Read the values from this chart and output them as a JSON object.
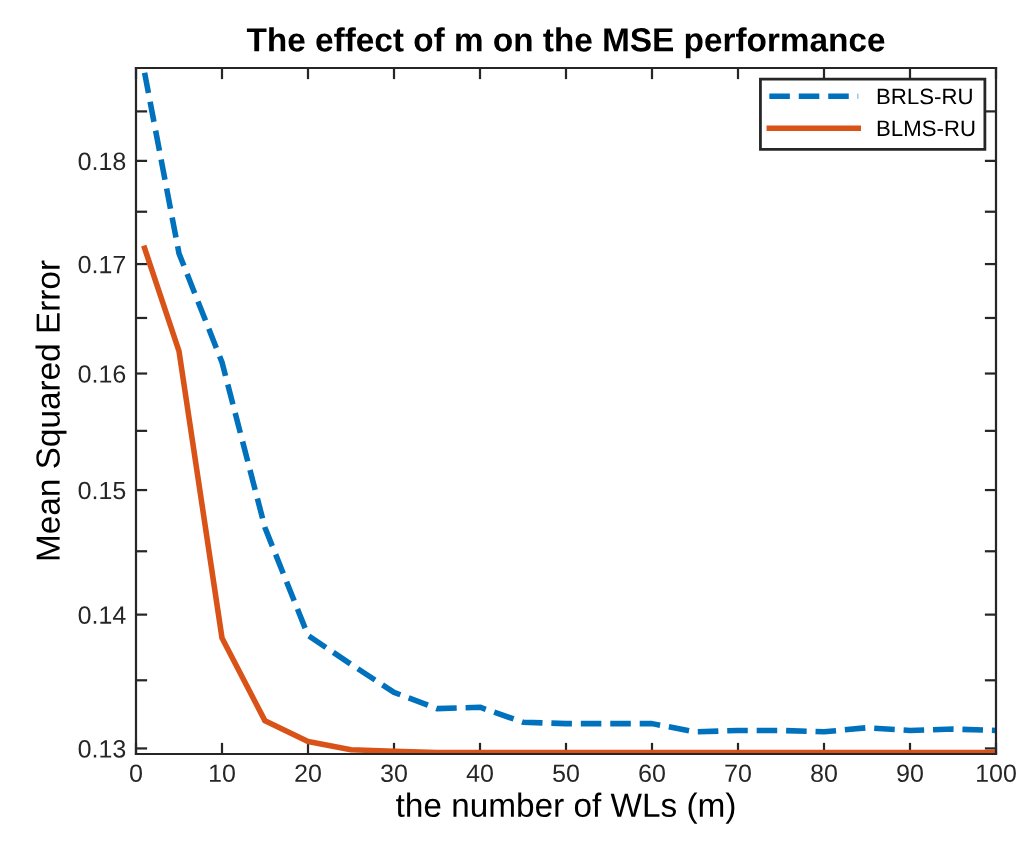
{
  "chart_data": {
    "type": "line",
    "title": "The effect of m on the MSE performance",
    "xlabel": "the number of WLs (m)",
    "ylabel": "Mean Squared Error",
    "log": "y",
    "xlim": [
      0,
      100
    ],
    "xticks": [
      0,
      10,
      20,
      30,
      40,
      50,
      60,
      70,
      80,
      90,
      100
    ],
    "ylim": [
      0.1296,
      0.1895
    ],
    "yticks": [
      0.13,
      {
        "value": 0.135,
        "label": null
      },
      0.14,
      {
        "value": 0.145,
        "label": null
      },
      0.15,
      {
        "value": 0.155,
        "label": null
      },
      0.16,
      {
        "value": 0.165,
        "label": null
      },
      0.17,
      {
        "value": 0.175,
        "label": null
      },
      0.18,
      {
        "value": 0.185,
        "label": null
      }
    ],
    "legend": "top right",
    "grid": false,
    "series": [
      {
        "name": "BRLS-RU",
        "color": "#0072bd",
        "line_style": "dashed",
        "x": [
          1,
          5,
          10,
          15,
          20,
          25,
          30,
          35,
          40,
          45,
          50,
          55,
          60,
          65,
          70,
          75,
          80,
          85,
          90,
          95,
          100
        ],
        "values": [
          0.189,
          0.171,
          0.161,
          0.1469,
          0.1384,
          0.1362,
          0.1341,
          0.1329,
          0.133,
          0.1319,
          0.1318,
          0.1318,
          0.1318,
          0.1312,
          0.1313,
          0.1313,
          0.1312,
          0.1315,
          0.1313,
          0.1314,
          0.1313
        ]
      },
      {
        "name": "BLMS-RU",
        "color": "#d95319",
        "line_style": "solid",
        "x": [
          1,
          5,
          10,
          15,
          20,
          25,
          30,
          35,
          40,
          45,
          50,
          55,
          60,
          65,
          70,
          75,
          80,
          85,
          90,
          95,
          100
        ],
        "values": [
          0.1715,
          0.162,
          0.1382,
          0.132,
          0.1305,
          0.1299,
          0.1298,
          0.1297,
          0.1297,
          0.1297,
          0.1297,
          0.1297,
          0.1297,
          0.1297,
          0.1297,
          0.1297,
          0.1297,
          0.1297,
          0.1297,
          0.1297,
          0.1297
        ]
      }
    ]
  }
}
